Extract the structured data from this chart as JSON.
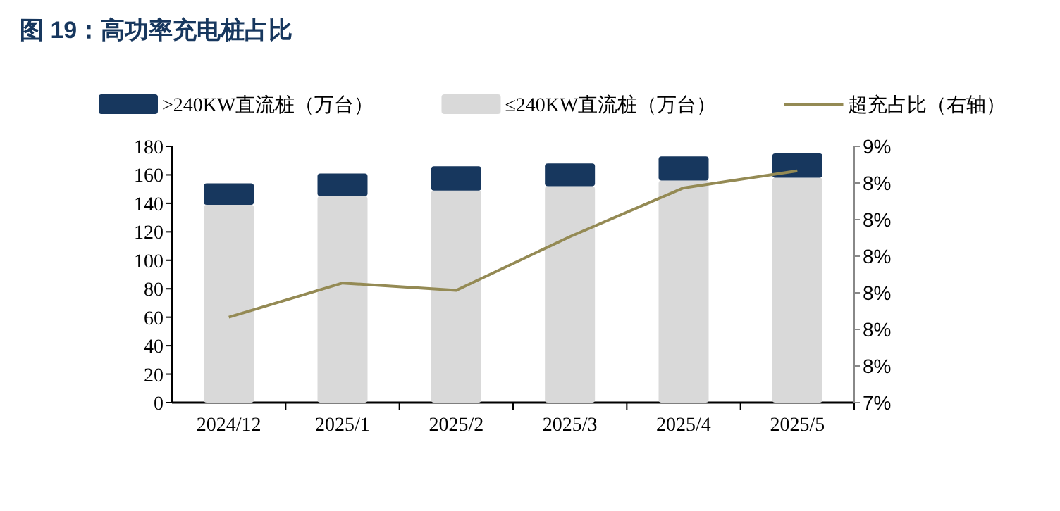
{
  "chart_data": {
    "type": "bar",
    "title": "图 19：高功率充电桩占比",
    "categories": [
      "2024/12",
      "2025/1",
      "2025/2",
      "2025/3",
      "2025/4",
      "2025/5"
    ],
    "stacked": true,
    "series": [
      {
        "name": "≤240KW直流桩（万台）",
        "color": "#d9d9d9",
        "values": [
          139,
          145,
          149,
          152,
          156,
          158
        ]
      },
      {
        "name": ">240KW直流桩（万台）",
        "color": "#17375e",
        "values": [
          15,
          16,
          17,
          16,
          17,
          17
        ]
      },
      {
        "name": "超充占比（右轴）",
        "type": "line",
        "axis": "y2",
        "color": "#948a54",
        "values": [
          7.8,
          7.94,
          7.91,
          8.13,
          8.33,
          8.4
        ]
      }
    ],
    "legend": "top",
    "ylim": [
      0,
      180
    ],
    "yticks": [
      0,
      20,
      40,
      60,
      80,
      100,
      120,
      140,
      160,
      180
    ],
    "y2lim": [
      7.45,
      8.5
    ],
    "y2ticks": [
      {
        "value": 7.45,
        "label": "7%"
      },
      {
        "value": 7.6,
        "label": "8%"
      },
      {
        "value": 7.75,
        "label": "8%"
      },
      {
        "value": 7.9,
        "label": "8%"
      },
      {
        "value": 8.05,
        "label": "8%"
      },
      {
        "value": 8.2,
        "label": "8%"
      },
      {
        "value": 8.35,
        "label": "8%"
      },
      {
        "value": 8.5,
        "label": "9%"
      }
    ]
  }
}
